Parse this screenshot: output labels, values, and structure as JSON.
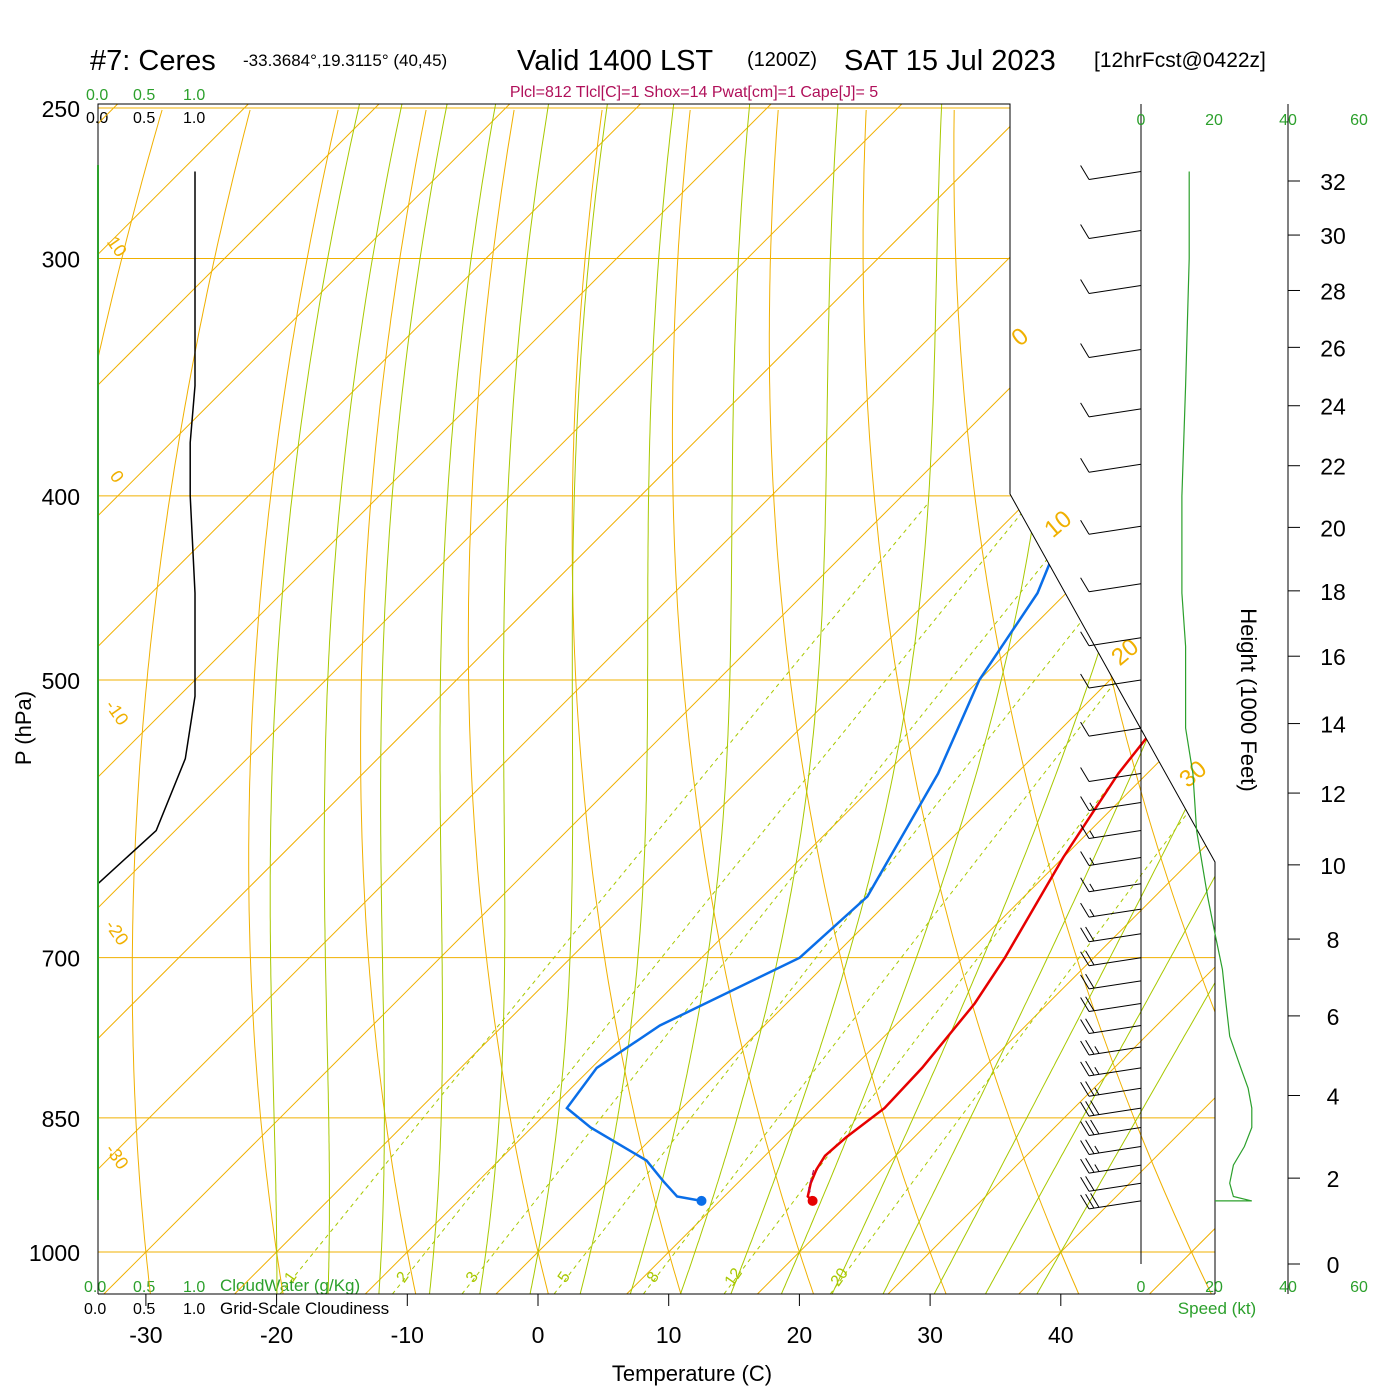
{
  "header": {
    "station": "#7: Ceres",
    "coords": "-33.3684°,19.3115° (40,45)",
    "valid": "Valid 1400 LST",
    "zulu": "(1200Z)",
    "date": "SAT 15 Jul 2023",
    "forecast": "[12hrFcst@0422z]",
    "indices": "Plcl=812 Tlcl[C]=1 Shox=14 Pwat[cm]=1 Cape[J]= 5"
  },
  "left_scale": {
    "top_green": [
      "0.0",
      "0.5",
      "1.0"
    ],
    "top_black": [
      "0.0",
      "0.5",
      "1.0"
    ],
    "bottom_green": [
      "0.0",
      "0.5",
      "1.0"
    ],
    "bottom_black": [
      "0.0",
      "0.5",
      "1.0"
    ],
    "cloudwater_label": "CloudWater (g/Kg)",
    "cloudiness_label": "Grid-Scale Cloudiness"
  },
  "wind_scale": {
    "top": [
      "0",
      "20",
      "40",
      "60"
    ],
    "bottom": [
      "0",
      "20",
      "40",
      "60"
    ],
    "speed_label": "Speed (kt)"
  },
  "colors": {
    "isotherm": "#f0b000",
    "dry_adiabat": "#f0b000",
    "moist_adiabat": "#a8c800",
    "mixing_ratio": "#a8c800",
    "temperature": "#e60000",
    "dewpoint": "#0a6ee8",
    "cloud_axis": "#2ca02c",
    "indices_text": "#b0105a"
  },
  "chart_data": {
    "type": "line",
    "title": "Valid 1400 LST (1200Z) SAT 15 Jul 2023",
    "xlabel": "Temperature (C)",
    "ylabel": "P (hPa)",
    "y2label": "Height (1000 Feet)",
    "x_ticks": [
      "-30",
      "-20",
      "-10",
      "0",
      "10",
      "20",
      "30",
      "40"
    ],
    "y_ticks": [
      "250",
      "300",
      "400",
      "500",
      "700",
      "850",
      "1000"
    ],
    "height_ticks": [
      "0",
      "2",
      "4",
      "6",
      "8",
      "10",
      "12",
      "14",
      "16",
      "18",
      "20",
      "22",
      "24",
      "26",
      "28",
      "30",
      "32"
    ],
    "isotherm_labels": [
      "10",
      "0",
      "-10",
      "-20",
      "-30",
      "0",
      "10",
      "20",
      "30"
    ],
    "mixing_ratio_labels": [
      "1",
      "2",
      "3",
      "5",
      "8",
      "12",
      "20"
    ],
    "skew": 1,
    "series": [
      {
        "name": "Temperature",
        "points": [
          [
            17.1,
            940
          ],
          [
            16.4,
            935
          ],
          [
            15.6,
            920
          ],
          [
            15.0,
            905
          ],
          [
            14.6,
            890
          ],
          [
            14.8,
            870
          ],
          [
            15.5,
            840
          ],
          [
            15.3,
            800
          ],
          [
            14.4,
            740
          ],
          [
            13.2,
            700
          ],
          [
            10.0,
            620
          ],
          [
            7.8,
            560
          ],
          [
            6.3,
            500
          ],
          [
            4.7,
            450
          ],
          [
            2.5,
            400
          ],
          [
            -2.0,
            350
          ],
          [
            -7.0,
            300
          ],
          [
            -12.0,
            270
          ]
        ]
      },
      {
        "name": "Dewpoint",
        "points": [
          [
            8.6,
            940
          ],
          [
            6.4,
            935
          ],
          [
            4.2,
            918
          ],
          [
            1.3,
            895
          ],
          [
            -5.5,
            860
          ],
          [
            -8.8,
            840
          ],
          [
            -9.6,
            800
          ],
          [
            -8.0,
            760
          ],
          [
            -2.5,
            700
          ],
          [
            -2.0,
            650
          ],
          [
            -6.0,
            560
          ],
          [
            -10.0,
            500
          ],
          [
            -12.2,
            450
          ],
          [
            -16.6,
            400
          ],
          [
            -22.5,
            350
          ],
          [
            -28.5,
            300
          ],
          [
            -33.0,
            270
          ]
        ]
      }
    ],
    "cloud_line": [
      [
        0.0,
        270
      ],
      [
        0.0,
        300
      ],
      [
        0.0,
        350
      ],
      [
        -0.05,
        375
      ],
      [
        -0.05,
        400
      ],
      [
        0.0,
        450
      ],
      [
        0.0,
        510
      ],
      [
        -0.1,
        550
      ],
      [
        -0.4,
        600
      ]
    ],
    "wind_speed_profile": [
      [
        30,
        940
      ],
      [
        25,
        935
      ],
      [
        24,
        920
      ],
      [
        25,
        900
      ],
      [
        28,
        880
      ],
      [
        30,
        860
      ],
      [
        30,
        840
      ],
      [
        29,
        820
      ],
      [
        27,
        800
      ],
      [
        24,
        770
      ],
      [
        23,
        740
      ],
      [
        22,
        710
      ],
      [
        20,
        680
      ],
      [
        18,
        650
      ],
      [
        15,
        600
      ],
      [
        14,
        560
      ],
      [
        12,
        530
      ],
      [
        12,
        500
      ],
      [
        12,
        480
      ],
      [
        11,
        450
      ],
      [
        11,
        400
      ],
      [
        12,
        350
      ],
      [
        13,
        300
      ],
      [
        13,
        270
      ]
    ],
    "wind_barbs": [
      {
        "p": 940,
        "speed": 30,
        "dir": 250
      },
      {
        "p": 920,
        "speed": 24,
        "dir": 250
      },
      {
        "p": 900,
        "speed": 25,
        "dir": 255
      },
      {
        "p": 880,
        "speed": 28,
        "dir": 255
      },
      {
        "p": 860,
        "speed": 30,
        "dir": 255
      },
      {
        "p": 840,
        "speed": 30,
        "dir": 260
      },
      {
        "p": 820,
        "speed": 29,
        "dir": 260
      },
      {
        "p": 800,
        "speed": 27,
        "dir": 260
      },
      {
        "p": 780,
        "speed": 25,
        "dir": 260
      },
      {
        "p": 760,
        "speed": 24,
        "dir": 262
      },
      {
        "p": 740,
        "speed": 23,
        "dir": 262
      },
      {
        "p": 720,
        "speed": 22,
        "dir": 265
      },
      {
        "p": 700,
        "speed": 21,
        "dir": 265
      },
      {
        "p": 680,
        "speed": 20,
        "dir": 265
      },
      {
        "p": 660,
        "speed": 19,
        "dir": 268
      },
      {
        "p": 640,
        "speed": 18,
        "dir": 268
      },
      {
        "p": 620,
        "speed": 16,
        "dir": 270
      },
      {
        "p": 600,
        "speed": 15,
        "dir": 270
      },
      {
        "p": 580,
        "speed": 15,
        "dir": 272
      },
      {
        "p": 560,
        "speed": 14,
        "dir": 272
      },
      {
        "p": 530,
        "speed": 12,
        "dir": 275
      },
      {
        "p": 500,
        "speed": 12,
        "dir": 275
      },
      {
        "p": 475,
        "speed": 11,
        "dir": 278
      },
      {
        "p": 445,
        "speed": 11,
        "dir": 278
      },
      {
        "p": 415,
        "speed": 11,
        "dir": 280
      },
      {
        "p": 385,
        "speed": 11,
        "dir": 280
      },
      {
        "p": 360,
        "speed": 12,
        "dir": 282
      },
      {
        "p": 335,
        "speed": 12,
        "dir": 282
      },
      {
        "p": 310,
        "speed": 13,
        "dir": 285
      },
      {
        "p": 290,
        "speed": 13,
        "dir": 285
      },
      {
        "p": 270,
        "speed": 13,
        "dir": 285
      }
    ],
    "surface_temperature": [
      17.1,
      940
    ],
    "surface_dewpoint": [
      8.6,
      940
    ]
  }
}
